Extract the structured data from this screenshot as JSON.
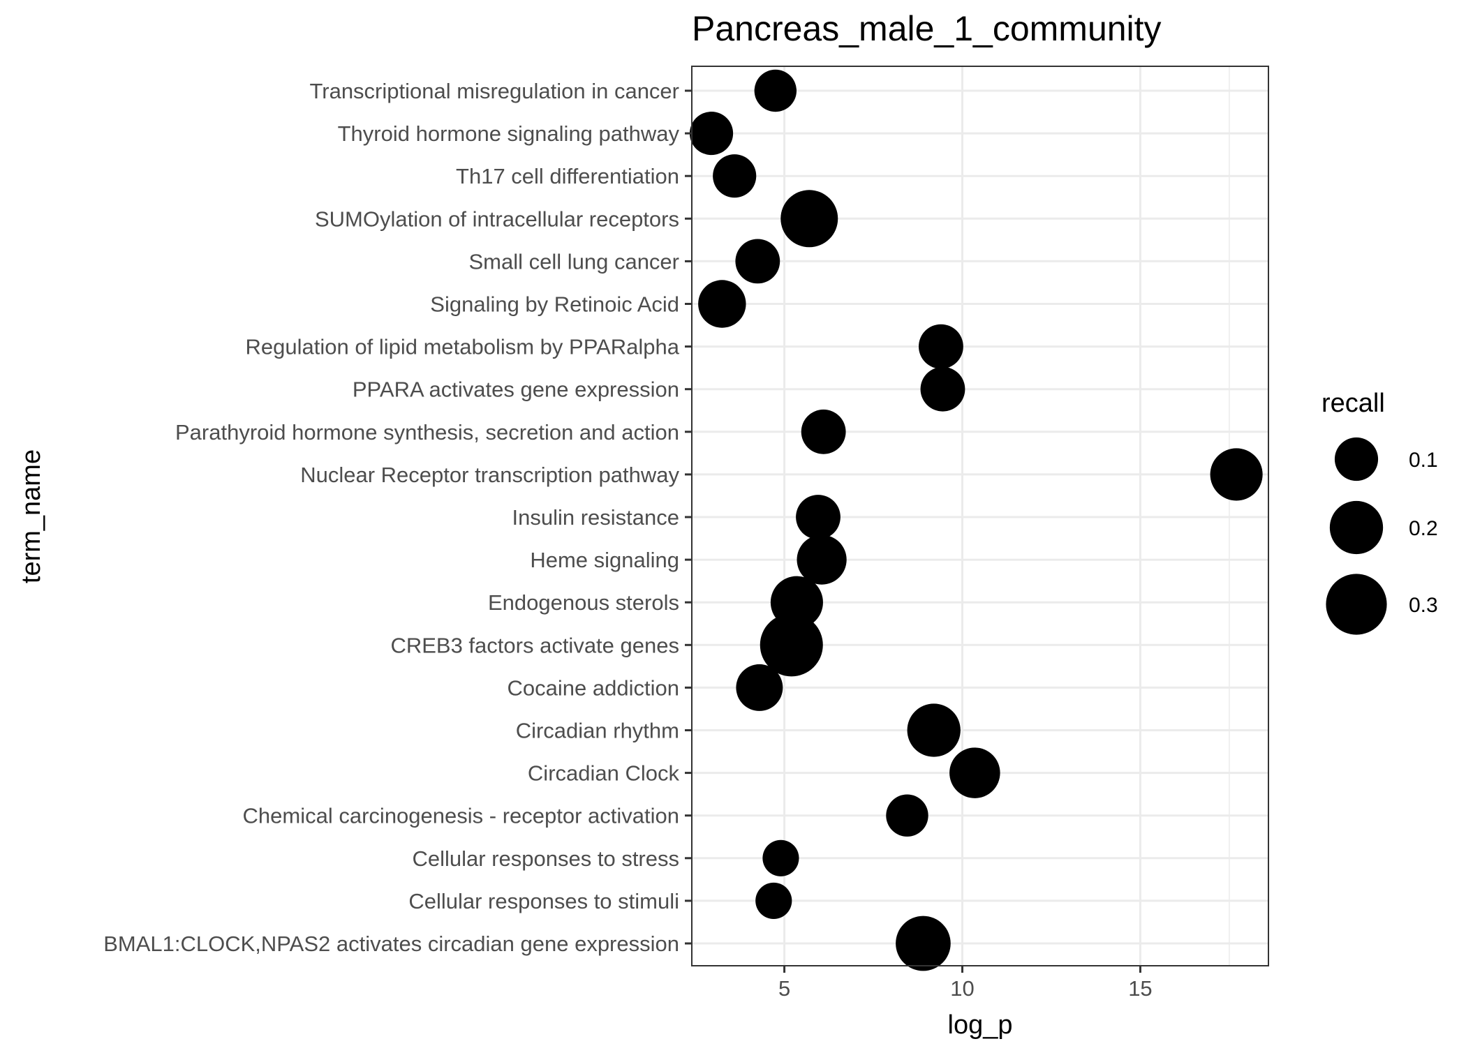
{
  "chart_data": {
    "type": "scatter",
    "title": "Pancreas_male_1_community",
    "xlabel": "log_p",
    "ylabel": "term_name",
    "xlim": [
      2.4,
      18.6
    ],
    "xticks": [
      5,
      10,
      15
    ],
    "grid": true,
    "legend_position": "right",
    "size_legend": {
      "title": "recall",
      "entries": [
        {
          "label": "0.1",
          "value": 0.1
        },
        {
          "label": "0.2",
          "value": 0.2
        },
        {
          "label": "0.3",
          "value": 0.3
        }
      ]
    },
    "colors": {
      "point": "#000000",
      "panel_border": "#333333",
      "grid": "#ebebeb"
    },
    "categories": [
      "Transcriptional misregulation in cancer",
      "Thyroid hormone signaling pathway",
      "Th17 cell differentiation",
      "SUMOylation of intracellular receptors",
      "Small cell lung cancer",
      "Signaling by Retinoic Acid",
      "Regulation of lipid metabolism by PPARalpha",
      "PPARA activates gene expression",
      "Parathyroid hormone synthesis, secretion and action",
      "Nuclear Receptor transcription pathway",
      "Insulin resistance",
      "Heme signaling",
      "Endogenous sterols",
      "CREB3 factors activate genes",
      "Cocaine addiction",
      "Circadian rhythm",
      "Circadian Clock",
      "Chemical carcinogenesis - receptor activation",
      "Cellular responses to stress",
      "Cellular responses to stimuli",
      "BMAL1:CLOCK,NPAS2 activates circadian gene expression"
    ],
    "points": [
      {
        "term": "Transcriptional misregulation in cancer",
        "log_p": 4.75,
        "recall": 0.09
      },
      {
        "term": "Thyroid hormone signaling pathway",
        "log_p": 2.95,
        "recall": 0.1
      },
      {
        "term": "Th17 cell differentiation",
        "log_p": 3.6,
        "recall": 0.1
      },
      {
        "term": "SUMOylation of intracellular receptors",
        "log_p": 5.7,
        "recall": 0.25
      },
      {
        "term": "Small cell lung cancer",
        "log_p": 4.25,
        "recall": 0.11
      },
      {
        "term": "Signaling by Retinoic Acid",
        "log_p": 3.25,
        "recall": 0.14
      },
      {
        "term": "Regulation of lipid metabolism by PPARalpha",
        "log_p": 9.4,
        "recall": 0.11
      },
      {
        "term": "PPARA activates gene expression",
        "log_p": 9.45,
        "recall": 0.11
      },
      {
        "term": "Parathyroid hormone synthesis, secretion and action",
        "log_p": 6.1,
        "recall": 0.11
      },
      {
        "term": "Nuclear Receptor transcription pathway",
        "log_p": 17.7,
        "recall": 0.19
      },
      {
        "term": "Insulin resistance",
        "log_p": 5.95,
        "recall": 0.11
      },
      {
        "term": "Heme signaling",
        "log_p": 6.05,
        "recall": 0.16
      },
      {
        "term": "Endogenous sterols",
        "log_p": 5.35,
        "recall": 0.19
      },
      {
        "term": "CREB3 factors activate genes",
        "log_p": 5.2,
        "recall": 0.33
      },
      {
        "term": "Cocaine addiction",
        "log_p": 4.3,
        "recall": 0.13
      },
      {
        "term": "Circadian rhythm",
        "log_p": 9.2,
        "recall": 0.2
      },
      {
        "term": "Circadian Clock",
        "log_p": 10.35,
        "recall": 0.17
      },
      {
        "term": "Chemical carcinogenesis - receptor activation",
        "log_p": 8.45,
        "recall": 0.09
      },
      {
        "term": "Cellular responses to stress",
        "log_p": 4.9,
        "recall": 0.05
      },
      {
        "term": "Cellular responses to stimuli",
        "log_p": 4.7,
        "recall": 0.05
      },
      {
        "term": "BMAL1:CLOCK,NPAS2 activates circadian gene expression",
        "log_p": 8.9,
        "recall": 0.22
      }
    ]
  }
}
